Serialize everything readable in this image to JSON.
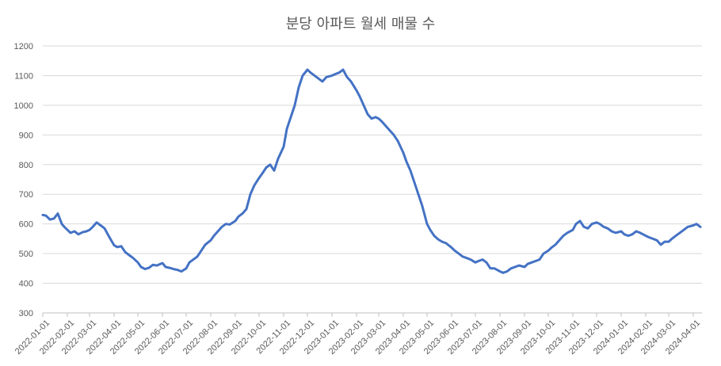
{
  "chart_data": {
    "type": "line",
    "title": "분당 아파트 월세 매물 수",
    "ylim": [
      300,
      1200
    ],
    "yticks": [
      300,
      400,
      500,
      600,
      700,
      800,
      900,
      1000,
      1100,
      1200
    ],
    "xlim": [
      "2022-01-01",
      "2024-04-12"
    ],
    "xticks": [
      "2022-01-01",
      "2022-02-01",
      "2022-03-01",
      "2022-04-01",
      "2022-05-01",
      "2022-06-01",
      "2022-07-01",
      "2022-08-01",
      "2022-09-01",
      "2022-10-01",
      "2022-11-01",
      "2022-12-01",
      "2023-01-01",
      "2023-02-01",
      "2023-03-01",
      "2023-04-01",
      "2023-05-01",
      "2023-06-01",
      "2023-07-01",
      "2023-08-01",
      "2023-09-01",
      "2023-10-01",
      "2023-11-01",
      "2023-12-01",
      "2024-01-01",
      "2024-02-01",
      "2024-03-01",
      "2024-04-01"
    ],
    "grid": true,
    "legend": "none",
    "series": [
      {
        "color": "#4472c4",
        "x": [
          "2022-01-01",
          "2022-01-05",
          "2022-01-10",
          "2022-01-15",
          "2022-01-20",
          "2022-01-25",
          "2022-01-29",
          "2022-02-05",
          "2022-02-10",
          "2022-02-15",
          "2022-02-20",
          "2022-02-25",
          "2022-03-01",
          "2022-03-05",
          "2022-03-10",
          "2022-03-15",
          "2022-03-20",
          "2022-03-25",
          "2022-04-01",
          "2022-04-05",
          "2022-04-10",
          "2022-04-15",
          "2022-04-20",
          "2022-04-25",
          "2022-05-01",
          "2022-05-05",
          "2022-05-10",
          "2022-05-15",
          "2022-05-20",
          "2022-05-25",
          "2022-06-01",
          "2022-06-05",
          "2022-06-10",
          "2022-06-15",
          "2022-06-20",
          "2022-06-25",
          "2022-07-01",
          "2022-07-05",
          "2022-07-10",
          "2022-07-15",
          "2022-07-20",
          "2022-07-25",
          "2022-08-01",
          "2022-08-05",
          "2022-08-10",
          "2022-08-15",
          "2022-08-20",
          "2022-08-25",
          "2022-09-01",
          "2022-09-05",
          "2022-09-10",
          "2022-09-15",
          "2022-09-20",
          "2022-09-25",
          "2022-10-01",
          "2022-10-05",
          "2022-10-10",
          "2022-10-15",
          "2022-10-20",
          "2022-10-25",
          "2022-11-01",
          "2022-11-05",
          "2022-11-10",
          "2022-11-15",
          "2022-11-20",
          "2022-11-25",
          "2022-12-01",
          "2022-12-05",
          "2022-12-10",
          "2022-12-15",
          "2022-12-20",
          "2022-12-25",
          "2023-01-01",
          "2023-01-05",
          "2023-01-10",
          "2023-01-15",
          "2023-01-20",
          "2023-01-25",
          "2023-02-01",
          "2023-02-05",
          "2023-02-10",
          "2023-02-15",
          "2023-02-20",
          "2023-02-25",
          "2023-03-01",
          "2023-03-05",
          "2023-03-10",
          "2023-03-15",
          "2023-03-20",
          "2023-03-25",
          "2023-04-01",
          "2023-04-05",
          "2023-04-10",
          "2023-04-15",
          "2023-04-20",
          "2023-04-25",
          "2023-05-01",
          "2023-05-05",
          "2023-05-10",
          "2023-05-15",
          "2023-05-20",
          "2023-05-25",
          "2023-06-01",
          "2023-06-05",
          "2023-06-10",
          "2023-06-15",
          "2023-06-20",
          "2023-06-25",
          "2023-07-01",
          "2023-07-05",
          "2023-07-10",
          "2023-07-15",
          "2023-07-20",
          "2023-07-25",
          "2023-08-01",
          "2023-08-05",
          "2023-08-10",
          "2023-08-15",
          "2023-08-20",
          "2023-08-25",
          "2023-09-01",
          "2023-09-05",
          "2023-09-10",
          "2023-09-15",
          "2023-09-20",
          "2023-09-25",
          "2023-10-01",
          "2023-10-05",
          "2023-10-10",
          "2023-10-15",
          "2023-10-20",
          "2023-10-25",
          "2023-11-01",
          "2023-11-05",
          "2023-11-10",
          "2023-11-15",
          "2023-11-20",
          "2023-11-25",
          "2023-12-01",
          "2023-12-05",
          "2023-12-10",
          "2023-12-15",
          "2023-12-20",
          "2023-12-25",
          "2024-01-01",
          "2024-01-05",
          "2024-01-10",
          "2024-01-15",
          "2024-01-20",
          "2024-01-25",
          "2024-02-01",
          "2024-02-05",
          "2024-02-10",
          "2024-02-15",
          "2024-02-20",
          "2024-02-25",
          "2024-03-01",
          "2024-03-05",
          "2024-03-10",
          "2024-03-15",
          "2024-03-20",
          "2024-03-25",
          "2024-04-01",
          "2024-04-05",
          "2024-04-10"
        ],
        "values": [
          630,
          628,
          615,
          618,
          635,
          600,
          588,
          570,
          575,
          565,
          572,
          575,
          580,
          590,
          605,
          595,
          585,
          560,
          528,
          522,
          525,
          505,
          495,
          485,
          470,
          455,
          448,
          452,
          462,
          460,
          468,
          455,
          452,
          448,
          445,
          440,
          450,
          470,
          480,
          490,
          510,
          530,
          545,
          560,
          575,
          590,
          600,
          598,
          610,
          625,
          635,
          650,
          700,
          730,
          755,
          770,
          790,
          800,
          780,
          820,
          860,
          920,
          960,
          1000,
          1060,
          1100,
          1120,
          1110,
          1100,
          1090,
          1080,
          1095,
          1100,
          1105,
          1110,
          1120,
          1095,
          1080,
          1050,
          1030,
          1000,
          970,
          955,
          960,
          955,
          945,
          930,
          915,
          900,
          880,
          840,
          810,
          780,
          740,
          700,
          660,
          600,
          580,
          560,
          548,
          540,
          535,
          520,
          510,
          500,
          490,
          485,
          480,
          470,
          475,
          480,
          470,
          450,
          450,
          440,
          435,
          440,
          450,
          455,
          460,
          455,
          465,
          470,
          475,
          480,
          500,
          510,
          520,
          530,
          545,
          560,
          570,
          580,
          600,
          610,
          590,
          585,
          600,
          605,
          600,
          590,
          585,
          575,
          570,
          575,
          565,
          560,
          565,
          575,
          570,
          560,
          555,
          550,
          545,
          530,
          540,
          540,
          550,
          560,
          570,
          580,
          590,
          595,
          600,
          590
        ]
      }
    ]
  }
}
